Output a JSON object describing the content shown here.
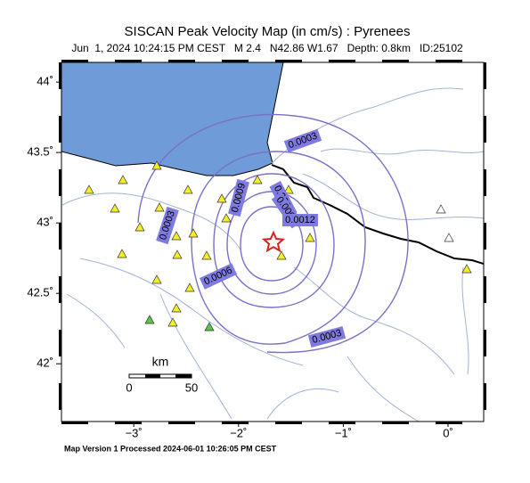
{
  "header": {
    "title": "SISCAN Peak Velocity Map (in cm/s) : Pyrenees",
    "subtitle": "Jun  1, 2024 10:24:15 PM CEST   M 2.4   N42.86 W1.67   Depth: 0.8km   ID:25102"
  },
  "map": {
    "lonlim": [
      -3.69,
      0.34
    ],
    "latlim": [
      41.59,
      44.14
    ],
    "lonticks": [
      {
        "value": -3,
        "label": "−3˚"
      },
      {
        "value": -2,
        "label": "−2˚"
      },
      {
        "value": -1,
        "label": "−1˚"
      },
      {
        "value": 0,
        "label": "0˚"
      }
    ],
    "latticks": [
      {
        "value": 44,
        "label": "44˚"
      },
      {
        "value": 43.5,
        "label": "43.5˚"
      },
      {
        "value": 43,
        "label": "43˚"
      },
      {
        "value": 42.5,
        "label": "42.5˚"
      },
      {
        "value": 42,
        "label": "42˚"
      }
    ],
    "contours": [
      "0.0003",
      "0.0006",
      "0.0009",
      "0.0012"
    ],
    "scale_bar": {
      "unit": "km",
      "start": "0",
      "end": "50"
    }
  },
  "footer": "Map Version 1 Processed 2024-06-01 10:26:05 PM CEST"
}
